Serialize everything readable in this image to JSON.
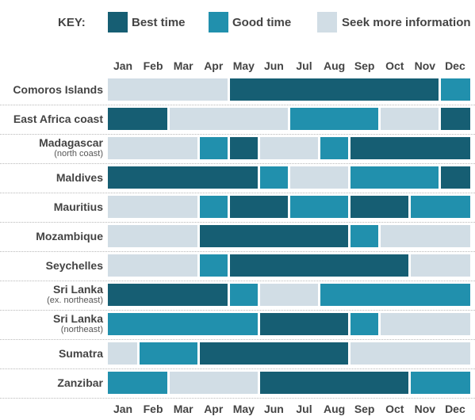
{
  "chart_data": {
    "type": "table",
    "legend": {
      "title": "KEY:",
      "entries": [
        {
          "id": "best",
          "label": "Best time",
          "color": "#165e73"
        },
        {
          "id": "good",
          "label": "Good time",
          "color": "#2190ad"
        },
        {
          "id": "seek",
          "label": "Seek more information",
          "color": "#d1dde5"
        }
      ]
    },
    "months": [
      "Jan",
      "Feb",
      "Mar",
      "Apr",
      "May",
      "Jun",
      "Jul",
      "Aug",
      "Sep",
      "Oct",
      "Nov",
      "Dec"
    ],
    "rows": [
      {
        "name": "Comoros Islands",
        "sub": "",
        "values": [
          "seek",
          "seek",
          "seek",
          "seek",
          "best",
          "best",
          "best",
          "best",
          "best",
          "best",
          "best",
          "good"
        ]
      },
      {
        "name": "East Africa coast",
        "sub": "",
        "values": [
          "best",
          "best",
          "seek",
          "seek",
          "seek",
          "seek",
          "good",
          "good",
          "good",
          "seek",
          "seek",
          "best"
        ]
      },
      {
        "name": "Madagascar",
        "sub": "(north coast)",
        "values": [
          "seek",
          "seek",
          "seek",
          "good",
          "best",
          "seek",
          "seek",
          "good",
          "best",
          "best",
          "best",
          "best"
        ]
      },
      {
        "name": "Maldives",
        "sub": "",
        "values": [
          "best",
          "best",
          "best",
          "best",
          "best",
          "good",
          "seek",
          "seek",
          "good",
          "good",
          "good",
          "best"
        ]
      },
      {
        "name": "Mauritius",
        "sub": "",
        "values": [
          "seek",
          "seek",
          "seek",
          "good",
          "best",
          "best",
          "good",
          "good",
          "best",
          "best",
          "good",
          "good"
        ]
      },
      {
        "name": "Mozambique",
        "sub": "",
        "values": [
          "seek",
          "seek",
          "seek",
          "best",
          "best",
          "best",
          "best",
          "best",
          "good",
          "seek",
          "seek",
          "seek"
        ]
      },
      {
        "name": "Seychelles",
        "sub": "",
        "values": [
          "seek",
          "seek",
          "seek",
          "good",
          "best",
          "best",
          "best",
          "best",
          "best",
          "best",
          "seek",
          "seek"
        ]
      },
      {
        "name": "Sri Lanka",
        "sub": "(ex. northeast)",
        "values": [
          "best",
          "best",
          "best",
          "best",
          "good",
          "seek",
          "seek",
          "good",
          "good",
          "good",
          "good",
          "good"
        ]
      },
      {
        "name": "Sri Lanka",
        "sub": "(northeast)",
        "values": [
          "good",
          "good",
          "good",
          "good",
          "good",
          "best",
          "best",
          "best",
          "good",
          "seek",
          "seek",
          "seek"
        ]
      },
      {
        "name": "Sumatra",
        "sub": "",
        "values": [
          "seek",
          "good",
          "good",
          "best",
          "best",
          "best",
          "best",
          "best",
          "seek",
          "seek",
          "seek",
          "seek"
        ]
      },
      {
        "name": "Zanzibar",
        "sub": "",
        "values": [
          "good",
          "good",
          "seek",
          "seek",
          "seek",
          "best",
          "best",
          "best",
          "best",
          "best",
          "good",
          "good"
        ]
      }
    ]
  }
}
